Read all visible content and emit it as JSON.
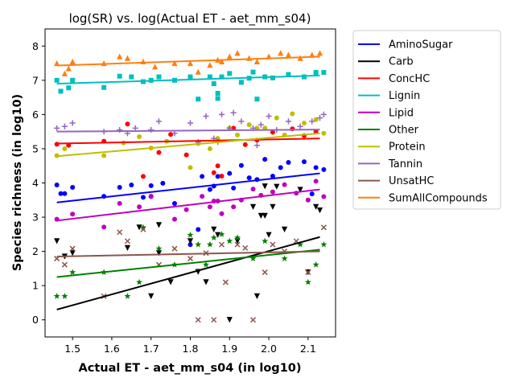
{
  "chart_data": {
    "type": "scatter",
    "title": "log(SR) vs. log(Actual ET - aet_mm_s04)",
    "xlabel": "Actual ET - aet_mm_s04 (in log10)",
    "ylabel": "Species richness (in log10)",
    "xlim": [
      1.43,
      2.17
    ],
    "ylim": [
      -0.5,
      8.5
    ],
    "xticks": [
      1.5,
      1.6,
      1.7,
      1.8,
      1.9,
      2.0,
      2.1
    ],
    "xtick_labels": [
      "1.5",
      "1.6",
      "1.7",
      "1.8",
      "1.9",
      "2.0",
      "2.1"
    ],
    "yticks": [
      0,
      1,
      2,
      3,
      4,
      5,
      6,
      7,
      8
    ],
    "ytick_labels": [
      "0",
      "1",
      "2",
      "3",
      "4",
      "5",
      "6",
      "7",
      "8"
    ],
    "grid": false,
    "legend_position": "outside-right",
    "series": [
      {
        "name": "AminoSugar",
        "color": "#0000ff",
        "marker": "circle",
        "fit": [
          [
            1.46,
            3.43
          ],
          [
            2.13,
            4.28
          ]
        ],
        "points": [
          [
            1.46,
            3.94
          ],
          [
            1.47,
            3.69
          ],
          [
            1.48,
            3.69
          ],
          [
            1.5,
            3.87
          ],
          [
            1.58,
            3.61
          ],
          [
            1.62,
            3.87
          ],
          [
            1.65,
            3.94
          ],
          [
            1.68,
            3.58
          ],
          [
            1.7,
            3.61
          ],
          [
            1.7,
            3.92
          ],
          [
            1.73,
            3.99
          ],
          [
            1.76,
            3.4
          ],
          [
            1.8,
            2.2
          ],
          [
            1.82,
            2.64
          ],
          [
            1.83,
            4.19
          ],
          [
            1.85,
            3.81
          ],
          [
            1.86,
            3.91
          ],
          [
            1.87,
            4.19
          ],
          [
            1.9,
            4.28
          ],
          [
            1.91,
            3.85
          ],
          [
            1.93,
            4.51
          ],
          [
            1.95,
            4.15
          ],
          [
            1.97,
            4.1
          ],
          [
            1.99,
            4.69
          ],
          [
            2.01,
            4.2
          ],
          [
            2.03,
            4.45
          ],
          [
            2.05,
            4.6
          ],
          [
            2.09,
            4.62
          ],
          [
            2.11,
            3.68
          ],
          [
            2.12,
            4.45
          ],
          [
            2.14,
            4.39
          ]
        ]
      },
      {
        "name": "Carb",
        "color": "#000000",
        "marker": "triangle-down",
        "fit": [
          [
            1.46,
            0.3
          ],
          [
            2.13,
            2.42
          ]
        ],
        "points": [
          [
            1.46,
            2.3
          ],
          [
            1.48,
            1.85
          ],
          [
            1.5,
            1.95
          ],
          [
            1.64,
            2.1
          ],
          [
            1.67,
            2.7
          ],
          [
            1.7,
            0.69
          ],
          [
            1.72,
            1.95
          ],
          [
            1.72,
            2.77
          ],
          [
            1.75,
            1.1
          ],
          [
            1.8,
            2.3
          ],
          [
            1.82,
            1.4
          ],
          [
            1.84,
            1.1
          ],
          [
            1.86,
            2.64
          ],
          [
            1.87,
            2.48
          ],
          [
            1.9,
            0
          ],
          [
            1.92,
            2.3
          ],
          [
            1.96,
            3.3
          ],
          [
            1.97,
            0.69
          ],
          [
            1.98,
            3.04
          ],
          [
            1.99,
            3.04
          ],
          [
            2.0,
            2.48
          ],
          [
            2.01,
            3.3
          ],
          [
            2.04,
            2.64
          ],
          [
            2.08,
            3.8
          ],
          [
            2.1,
            1.39
          ],
          [
            2.12,
            3.3
          ],
          [
            2.13,
            3.2
          ],
          [
            2.02,
            3.89
          ],
          [
            1.99,
            3.9
          ]
        ]
      },
      {
        "name": "ConcHC",
        "color": "#ff0000",
        "marker": "circle",
        "fit": [
          [
            1.46,
            5.15
          ],
          [
            2.13,
            5.3
          ]
        ],
        "points": [
          [
            1.46,
            5.13
          ],
          [
            1.49,
            5.1
          ],
          [
            1.58,
            5.22
          ],
          [
            1.64,
            5.72
          ],
          [
            1.68,
            4.19
          ],
          [
            1.72,
            4.89
          ],
          [
            1.75,
            5.42
          ],
          [
            1.79,
            4.82
          ],
          [
            1.82,
            5.18
          ],
          [
            1.86,
            4.3
          ],
          [
            1.87,
            4.5
          ],
          [
            1.88,
            4.2
          ],
          [
            1.91,
            5.6
          ],
          [
            1.94,
            5.12
          ],
          [
            1.97,
            5.25
          ],
          [
            2.01,
            5.48
          ],
          [
            2.06,
            5.58
          ],
          [
            2.09,
            5.38
          ],
          [
            2.12,
            5.5
          ]
        ]
      },
      {
        "name": "Lignin",
        "color": "#00bfbf",
        "marker": "square",
        "fit": [
          [
            1.46,
            6.9
          ],
          [
            2.13,
            7.14
          ]
        ],
        "points": [
          [
            1.46,
            7.0
          ],
          [
            1.47,
            6.68
          ],
          [
            1.49,
            6.78
          ],
          [
            1.5,
            7.0
          ],
          [
            1.58,
            6.79
          ],
          [
            1.62,
            7.12
          ],
          [
            1.65,
            7.1
          ],
          [
            1.68,
            6.96
          ],
          [
            1.7,
            7.0
          ],
          [
            1.72,
            7.1
          ],
          [
            1.76,
            7.0
          ],
          [
            1.8,
            7.1
          ],
          [
            1.82,
            6.45
          ],
          [
            1.85,
            7.1
          ],
          [
            1.86,
            6.9
          ],
          [
            1.87,
            6.47
          ],
          [
            1.87,
            6.62
          ],
          [
            1.88,
            7.1
          ],
          [
            1.9,
            7.2
          ],
          [
            1.93,
            6.94
          ],
          [
            1.95,
            7.06
          ],
          [
            1.96,
            7.24
          ],
          [
            1.97,
            6.45
          ],
          [
            1.99,
            7.1
          ],
          [
            2.01,
            7.07
          ],
          [
            2.05,
            7.17
          ],
          [
            2.09,
            7.1
          ],
          [
            2.12,
            7.23
          ],
          [
            2.14,
            7.23
          ]
        ]
      },
      {
        "name": "Lipid",
        "color": "#bf00bf",
        "marker": "circle",
        "fit": [
          [
            1.46,
            2.9
          ],
          [
            2.13,
            3.81
          ]
        ],
        "points": [
          [
            1.46,
            2.94
          ],
          [
            1.5,
            3.09
          ],
          [
            1.58,
            2.71
          ],
          [
            1.62,
            3.4
          ],
          [
            1.67,
            3.3
          ],
          [
            1.7,
            3.6
          ],
          [
            1.76,
            2.94
          ],
          [
            1.79,
            3.22
          ],
          [
            1.83,
            3.61
          ],
          [
            1.85,
            3.3
          ],
          [
            1.86,
            3.47
          ],
          [
            1.87,
            3.47
          ],
          [
            1.88,
            3.1
          ],
          [
            1.91,
            3.3
          ],
          [
            1.93,
            3.5
          ],
          [
            1.96,
            3.82
          ],
          [
            1.98,
            3.64
          ],
          [
            2.01,
            3.74
          ],
          [
            2.04,
            3.95
          ],
          [
            2.07,
            3.7
          ],
          [
            2.1,
            3.5
          ],
          [
            2.12,
            4.05
          ],
          [
            2.14,
            3.6
          ]
        ]
      },
      {
        "name": "Other",
        "color": "#008000",
        "marker": "star",
        "fit": [
          [
            1.46,
            1.25
          ],
          [
            2.13,
            2.05
          ]
        ],
        "points": [
          [
            1.46,
            0.69
          ],
          [
            1.48,
            0.69
          ],
          [
            1.5,
            1.39
          ],
          [
            1.58,
            1.39
          ],
          [
            1.64,
            0.69
          ],
          [
            1.67,
            1.1
          ],
          [
            1.68,
            2.7
          ],
          [
            1.72,
            2.08
          ],
          [
            1.76,
            1.61
          ],
          [
            1.8,
            2.48
          ],
          [
            1.82,
            2.2
          ],
          [
            1.84,
            1.61
          ],
          [
            1.85,
            2.2
          ],
          [
            1.86,
            2.4
          ],
          [
            1.88,
            2.5
          ],
          [
            1.9,
            2.3
          ],
          [
            1.92,
            2.4
          ],
          [
            1.96,
            1.79
          ],
          [
            1.99,
            2.3
          ],
          [
            2.04,
            1.79
          ],
          [
            2.08,
            2.2
          ],
          [
            2.1,
            1.1
          ],
          [
            2.12,
            1.61
          ],
          [
            2.14,
            2.2
          ]
        ]
      },
      {
        "name": "Protein",
        "color": "#bfbf00",
        "marker": "circle",
        "fit": [
          [
            1.46,
            4.78
          ],
          [
            2.13,
            5.45
          ]
        ],
        "points": [
          [
            1.46,
            4.8
          ],
          [
            1.48,
            5.0
          ],
          [
            1.58,
            4.8
          ],
          [
            1.63,
            5.17
          ],
          [
            1.67,
            5.35
          ],
          [
            1.7,
            5.02
          ],
          [
            1.74,
            5.22
          ],
          [
            1.8,
            4.45
          ],
          [
            1.82,
            5.15
          ],
          [
            1.85,
            5.0
          ],
          [
            1.87,
            5.3
          ],
          [
            1.9,
            5.6
          ],
          [
            1.92,
            5.4
          ],
          [
            1.95,
            5.7
          ],
          [
            1.97,
            5.6
          ],
          [
            1.99,
            5.6
          ],
          [
            2.02,
            5.9
          ],
          [
            2.04,
            5.4
          ],
          [
            2.06,
            6.02
          ],
          [
            2.09,
            5.75
          ],
          [
            2.12,
            5.85
          ],
          [
            2.14,
            5.45
          ]
        ]
      },
      {
        "name": "Tannin",
        "color": "#9467bd",
        "marker": "plus",
        "fit": [
          [
            1.46,
            5.5
          ],
          [
            2.13,
            5.56
          ]
        ],
        "points": [
          [
            1.46,
            5.6
          ],
          [
            1.48,
            5.65
          ],
          [
            1.5,
            5.75
          ],
          [
            1.58,
            5.5
          ],
          [
            1.62,
            5.55
          ],
          [
            1.64,
            5.45
          ],
          [
            1.66,
            5.6
          ],
          [
            1.7,
            5.55
          ],
          [
            1.72,
            5.8
          ],
          [
            1.76,
            5.45
          ],
          [
            1.8,
            5.75
          ],
          [
            1.82,
            5.2
          ],
          [
            1.84,
            5.95
          ],
          [
            1.86,
            5.3
          ],
          [
            1.87,
            5.2
          ],
          [
            1.88,
            6.0
          ],
          [
            1.9,
            5.6
          ],
          [
            1.91,
            6.05
          ],
          [
            1.93,
            5.8
          ],
          [
            1.96,
            5.6
          ],
          [
            1.97,
            5.1
          ],
          [
            1.98,
            5.7
          ],
          [
            2.0,
            5.95
          ],
          [
            2.02,
            5.55
          ],
          [
            2.05,
            5.8
          ],
          [
            2.08,
            5.65
          ],
          [
            2.11,
            5.8
          ],
          [
            2.13,
            5.9
          ],
          [
            2.14,
            6.0
          ]
        ]
      },
      {
        "name": "UnsatHC",
        "color": "#8c564b",
        "marker": "x",
        "fit": [
          [
            1.46,
            1.85
          ],
          [
            2.13,
            2.0
          ]
        ],
        "points": [
          [
            1.46,
            1.79
          ],
          [
            1.48,
            1.61
          ],
          [
            1.5,
            2.08
          ],
          [
            1.58,
            0.69
          ],
          [
            1.62,
            2.56
          ],
          [
            1.64,
            2.3
          ],
          [
            1.68,
            2.64
          ],
          [
            1.72,
            1.61
          ],
          [
            1.76,
            2.08
          ],
          [
            1.8,
            1.79
          ],
          [
            1.82,
            0
          ],
          [
            1.84,
            1.95
          ],
          [
            1.86,
            0
          ],
          [
            1.88,
            2.2
          ],
          [
            1.89,
            1.1
          ],
          [
            1.92,
            2.2
          ],
          [
            1.94,
            2.1
          ],
          [
            1.96,
            0
          ],
          [
            1.99,
            1.39
          ],
          [
            2.01,
            2.2
          ],
          [
            2.04,
            2.0
          ],
          [
            2.07,
            2.3
          ],
          [
            2.1,
            1.39
          ],
          [
            2.14,
            2.7
          ]
        ]
      },
      {
        "name": "SumAllCompounds",
        "color": "#ff7f0e",
        "marker": "triangle-up",
        "fit": [
          [
            1.46,
            7.43
          ],
          [
            2.13,
            7.69
          ]
        ],
        "points": [
          [
            1.46,
            7.5
          ],
          [
            1.48,
            7.2
          ],
          [
            1.49,
            7.35
          ],
          [
            1.5,
            7.55
          ],
          [
            1.58,
            7.5
          ],
          [
            1.62,
            7.7
          ],
          [
            1.64,
            7.65
          ],
          [
            1.68,
            7.55
          ],
          [
            1.71,
            7.4
          ],
          [
            1.76,
            7.5
          ],
          [
            1.8,
            7.5
          ],
          [
            1.82,
            7.25
          ],
          [
            1.85,
            7.45
          ],
          [
            1.87,
            7.6
          ],
          [
            1.88,
            7.55
          ],
          [
            1.9,
            7.7
          ],
          [
            1.92,
            7.8
          ],
          [
            1.95,
            7.65
          ],
          [
            1.97,
            7.55
          ],
          [
            2.0,
            7.7
          ],
          [
            2.03,
            7.8
          ],
          [
            2.05,
            7.75
          ],
          [
            2.08,
            7.65
          ],
          [
            2.11,
            7.75
          ],
          [
            2.13,
            7.8
          ]
        ]
      }
    ]
  }
}
